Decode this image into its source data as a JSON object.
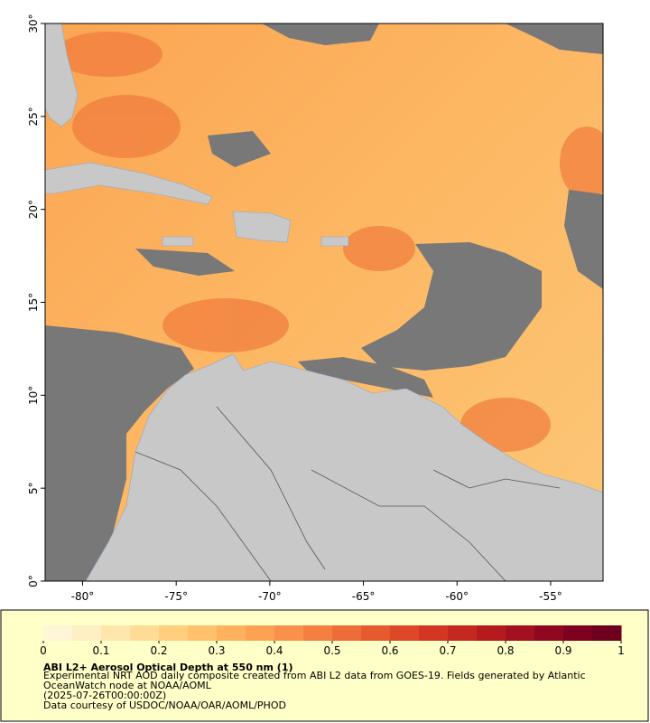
{
  "map": {
    "xlim": [
      -82,
      -52.2
    ],
    "ylim": [
      0,
      30
    ],
    "xticks": [
      {
        "value": -80,
        "label": "-80°"
      },
      {
        "value": -75,
        "label": "-75°"
      },
      {
        "value": -70,
        "label": "-70°"
      },
      {
        "value": -65,
        "label": "-65°"
      },
      {
        "value": -60,
        "label": "-60°"
      },
      {
        "value": -55,
        "label": "-55°"
      }
    ],
    "yticks": [
      {
        "value": 0,
        "label": "0°"
      },
      {
        "value": 5,
        "label": "5°"
      },
      {
        "value": 10,
        "label": "10°"
      },
      {
        "value": 15,
        "label": "15°"
      },
      {
        "value": 20,
        "label": "20°"
      },
      {
        "value": 25,
        "label": "25°"
      },
      {
        "value": 30,
        "label": "30°"
      }
    ]
  },
  "colorbar": {
    "lim": [
      0,
      1
    ],
    "ticks": [
      0,
      0.1,
      0.2,
      0.3,
      0.4,
      0.5,
      0.6,
      0.7,
      0.8,
      0.9,
      1
    ],
    "colors": [
      "#fff6d8",
      "#ffefc4",
      "#ffe6ad",
      "#ffdb95",
      "#ffcf7e",
      "#ffc16b",
      "#ffb25d",
      "#fda253",
      "#f9914a",
      "#f47f41",
      "#ee6c38",
      "#e75a30",
      "#de4829",
      "#d33723",
      "#c5281f",
      "#b51b1e",
      "#a3101f",
      "#900820",
      "#7e0220",
      "#6c001e"
    ]
  },
  "legend": {
    "title": "ABI L2+ Aerosol Optical Depth at 550 nm (1)",
    "description": "Experimental NRT AOD daily composite created from ABI L2 data from GOES-19. Fields generated by Atlantic OceanWatch node at NOAA/AOML",
    "date": "(2025-07-26T00:00:00Z)",
    "credit": "Data courtesy of USDOC/NOAA/OAR/AOML/PHOD"
  }
}
